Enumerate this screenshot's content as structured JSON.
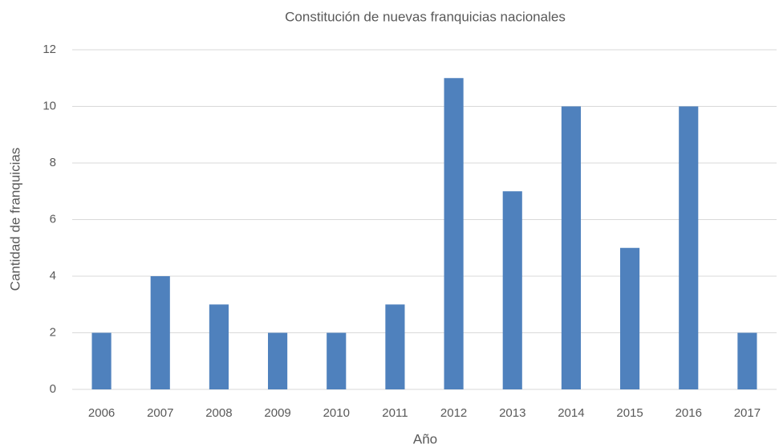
{
  "chart_data": {
    "type": "bar",
    "title": "Constitución de nuevas franquicias nacionales",
    "x_label": "Año",
    "y_label": "Cantidad de franquicias",
    "categories": [
      "2006",
      "2007",
      "2008",
      "2009",
      "2010",
      "2011",
      "2012",
      "2013",
      "2014",
      "2015",
      "2016",
      "2017"
    ],
    "values": [
      2,
      4,
      3,
      2,
      2,
      3,
      11,
      7,
      10,
      5,
      10,
      2
    ],
    "color": "#4f81bd",
    "ylim": [
      0,
      12
    ],
    "yticks": [
      0,
      2,
      4,
      6,
      8,
      10,
      12
    ],
    "grid": true
  }
}
